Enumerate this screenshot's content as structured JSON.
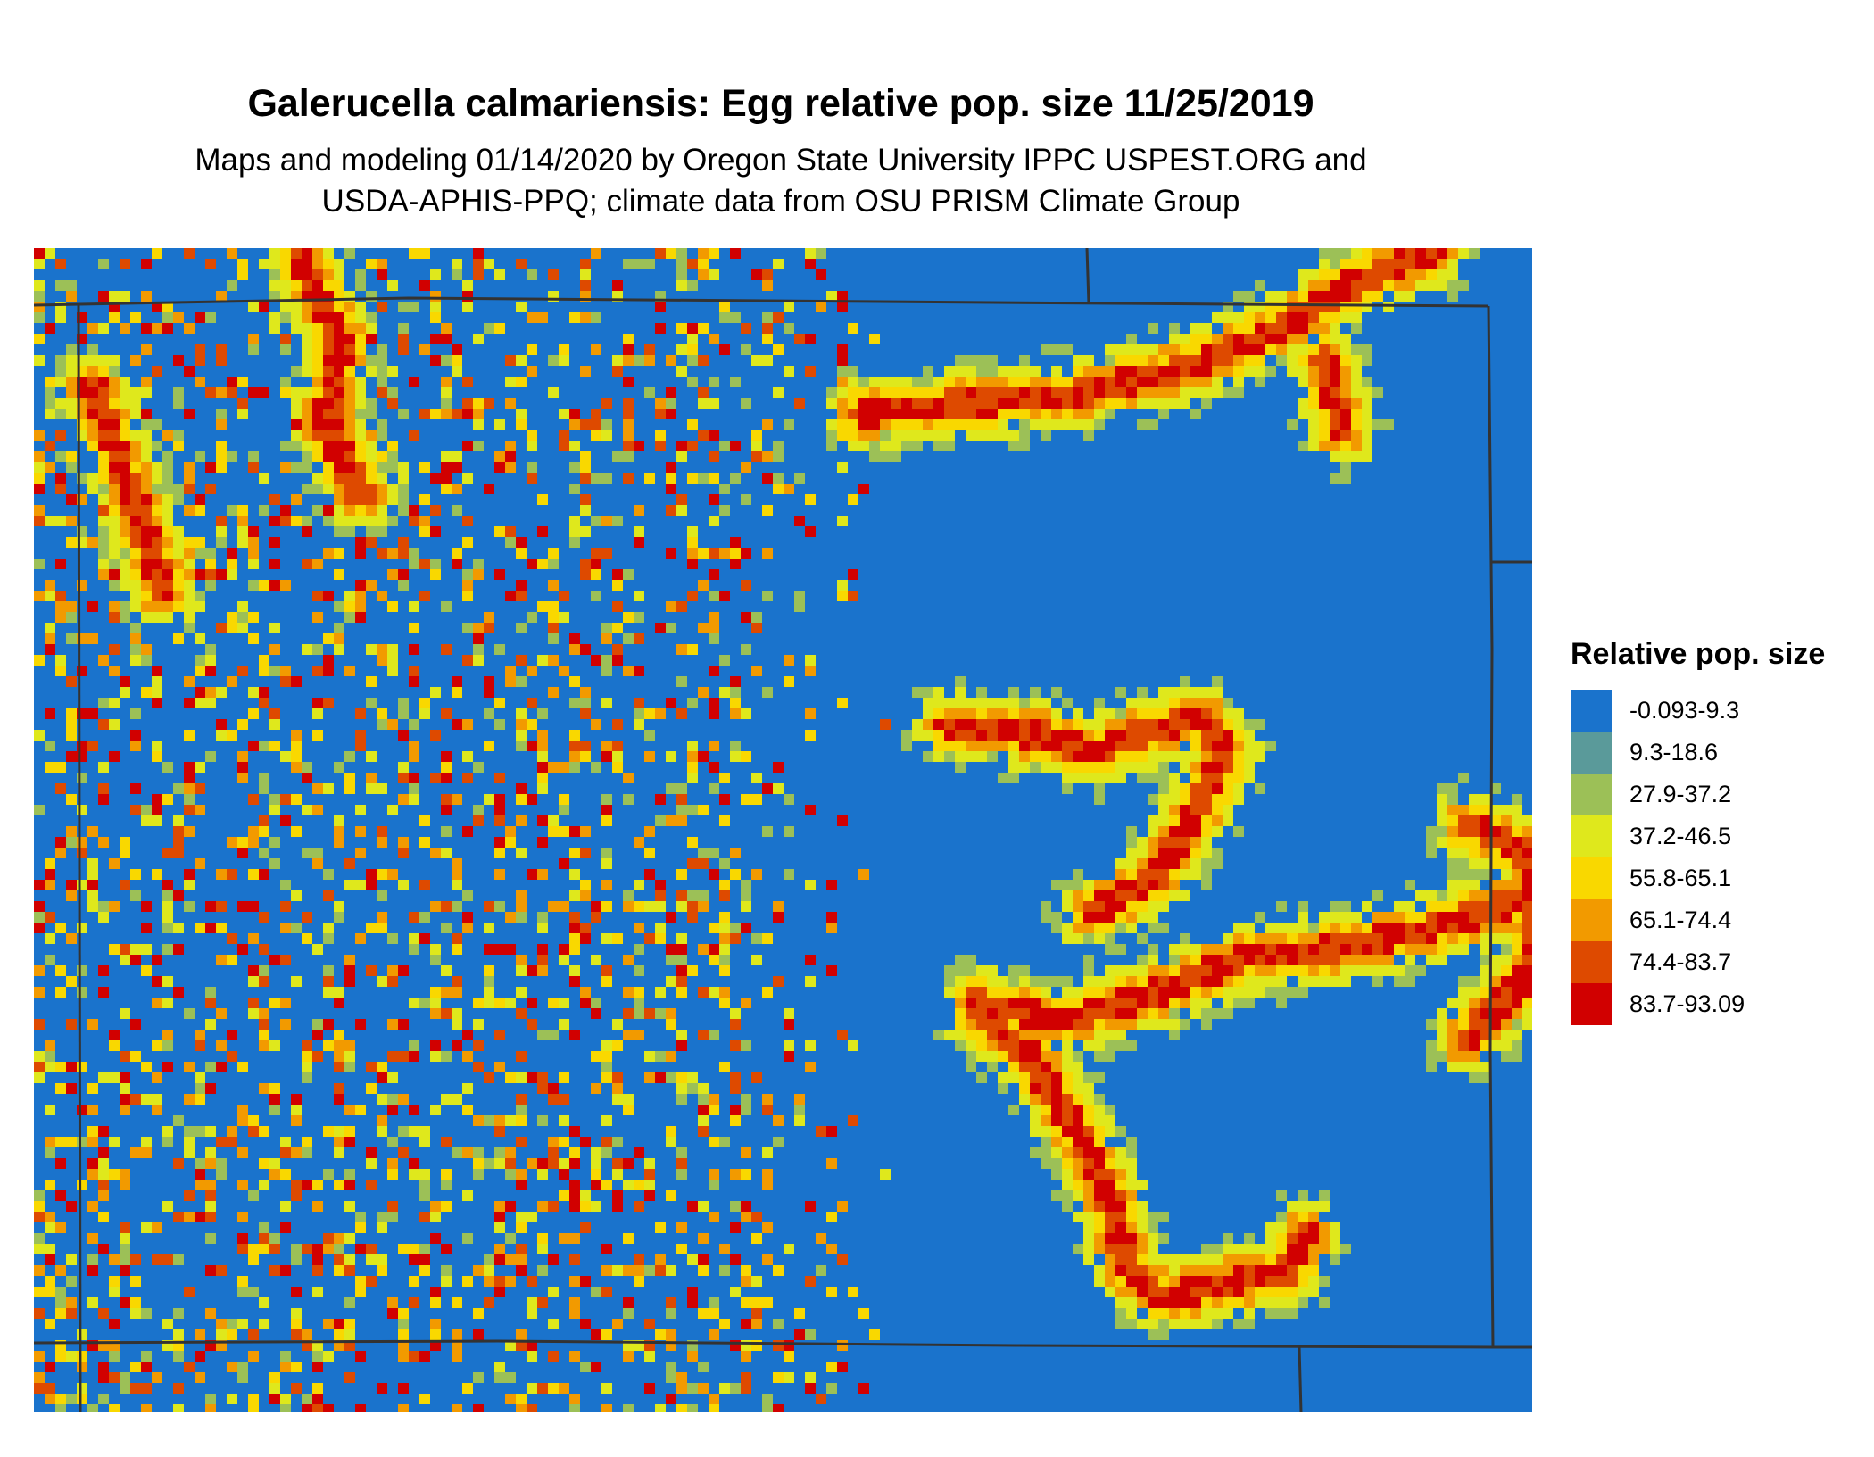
{
  "title": "Galerucella calmariensis: Egg relative pop. size 11/25/2019",
  "subtitle_line1": "Maps and modeling 01/14/2020 by Oregon State University IPPC USPEST.ORG and",
  "subtitle_line2": "USDA-APHIS-PPQ; climate data from OSU PRISM Climate Group",
  "legend": {
    "title": "Relative pop. size",
    "classes": [
      {
        "label": "-0.093-9.3",
        "color": "#1a73cc"
      },
      {
        "label": "9.3-18.6",
        "color": "#5a9a9a"
      },
      {
        "label": "27.9-37.2",
        "color": "#9cc057"
      },
      {
        "label": "37.2-46.5",
        "color": "#dfe81c"
      },
      {
        "label": "55.8-65.1",
        "color": "#f9d800"
      },
      {
        "label": "65.1-74.4",
        "color": "#f29a00"
      },
      {
        "label": "74.4-83.7",
        "color": "#de4a00"
      },
      {
        "label": "83.7-93.09",
        "color": "#d10000"
      }
    ]
  },
  "map": {
    "background_class": "-0.093-9.3",
    "border_color": "#333333"
  }
}
